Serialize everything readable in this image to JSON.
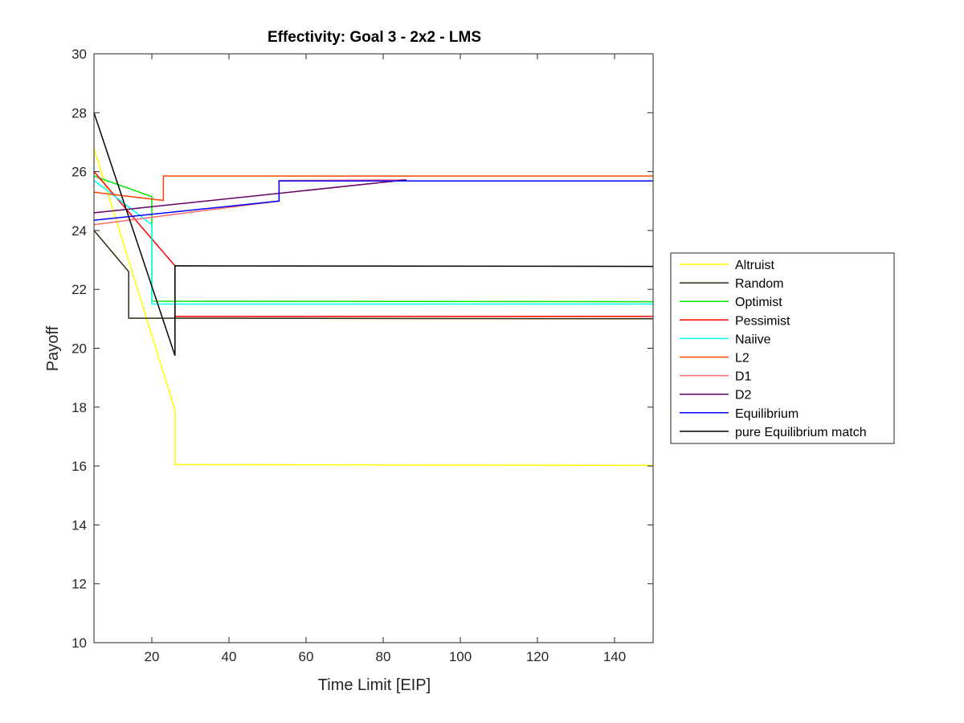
{
  "chart_data": {
    "type": "line",
    "title": "Effectivity: Goal 3 - 2x2 - LMS",
    "xlabel": "Time Limit [EIP]",
    "ylabel": "Payoff",
    "xlim": [
      5,
      150
    ],
    "ylim": [
      10,
      30
    ],
    "xticks": [
      20,
      40,
      60,
      80,
      100,
      120,
      140
    ],
    "yticks": [
      10,
      12,
      14,
      16,
      18,
      20,
      22,
      24,
      26,
      28,
      30
    ],
    "grid": false,
    "legend_position": "outside-right",
    "series": [
      {
        "name": "Altruist",
        "color": "#FFFF00",
        "points": [
          [
            5,
            26.8
          ],
          [
            26,
            17.9
          ],
          [
            26,
            16.05
          ],
          [
            150,
            16.02
          ]
        ]
      },
      {
        "name": "Random",
        "color": "#332D14",
        "points": [
          [
            5,
            24.0
          ],
          [
            14,
            22.6
          ],
          [
            14,
            21.02
          ],
          [
            26,
            21.02
          ],
          [
            26,
            21.02
          ],
          [
            150,
            21.0
          ]
        ]
      },
      {
        "name": "Optimist",
        "color": "#00E600",
        "points": [
          [
            5,
            25.85
          ],
          [
            20,
            25.15
          ],
          [
            20,
            21.6
          ],
          [
            150,
            21.58
          ]
        ]
      },
      {
        "name": "Pessimist",
        "color": "#FF0000",
        "points": [
          [
            5,
            26.0
          ],
          [
            26,
            22.8
          ],
          [
            26,
            21.08
          ],
          [
            150,
            21.08
          ]
        ]
      },
      {
        "name": "Naiive",
        "color": "#00FFFF",
        "points": [
          [
            5,
            25.7
          ],
          [
            20,
            24.2
          ],
          [
            20,
            21.5
          ],
          [
            150,
            21.5
          ]
        ]
      },
      {
        "name": "L2",
        "color": "#FF4500",
        "points": [
          [
            5,
            25.3
          ],
          [
            23,
            25.02
          ],
          [
            23,
            25.85
          ],
          [
            150,
            25.85
          ]
        ]
      },
      {
        "name": "D1",
        "color": "#FF6A6A",
        "points": [
          [
            5,
            24.2
          ],
          [
            53,
            25.0
          ],
          [
            53,
            25.7
          ],
          [
            86,
            25.72
          ]
        ]
      },
      {
        "name": "D2",
        "color": "#660066",
        "points": [
          [
            5,
            24.6
          ],
          [
            86,
            25.72
          ]
        ]
      },
      {
        "name": "Equilibrium",
        "color": "#0000FF",
        "points": [
          [
            5,
            24.35
          ],
          [
            53,
            25.0
          ],
          [
            53,
            25.68
          ],
          [
            150,
            25.68
          ]
        ]
      },
      {
        "name": "pure Equilibrium match",
        "color": "#000000",
        "points": [
          [
            5,
            28.0
          ],
          [
            26,
            19.75
          ],
          [
            26,
            22.8
          ],
          [
            150,
            22.78
          ]
        ]
      }
    ]
  }
}
